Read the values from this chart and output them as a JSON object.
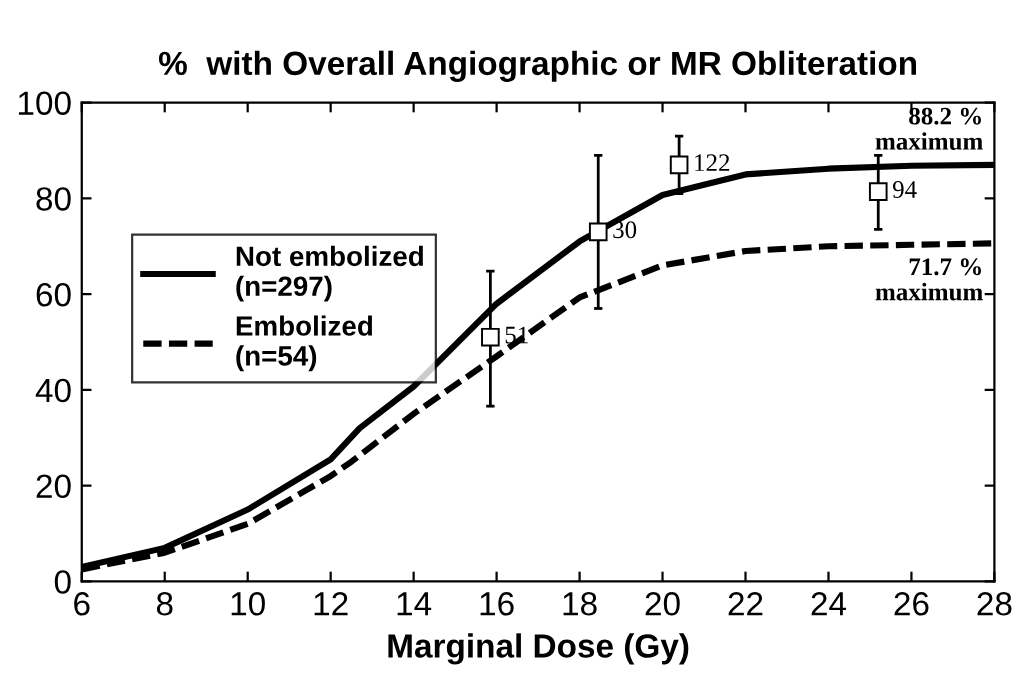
{
  "chart_data": {
    "type": "line",
    "title": "%  with Overall Angiographic or MR Obliteration",
    "xlabel": "Marginal Dose (Gy)",
    "xlim": [
      6,
      28
    ],
    "xticks": [
      6,
      8,
      10,
      12,
      14,
      16,
      18,
      20,
      22,
      24,
      26,
      28
    ],
    "ylim": [
      0,
      100
    ],
    "yticks": [
      0,
      20,
      40,
      60,
      80,
      100
    ],
    "grid": false,
    "legend": "left",
    "marker": "none",
    "series": [
      {
        "name": "Not embolized\n(n=297)",
        "color": "#000000",
        "line_style": "solid",
        "x": [
          6,
          8,
          10,
          12,
          12.7,
          14,
          16,
          18,
          20,
          22,
          24,
          26,
          28
        ],
        "values": [
          3,
          7,
          15,
          25.5,
          32,
          40.7,
          58,
          71,
          80.7,
          85,
          86.2,
          86.8,
          87
        ]
      },
      {
        "name": "Embolized\n(n=54)",
        "color": "#000000",
        "line_style": "dashed",
        "x": [
          6,
          8,
          10,
          12,
          12.5,
          14,
          16,
          18,
          20,
          22,
          24,
          26,
          28
        ],
        "values": [
          2.5,
          6,
          12,
          22,
          25,
          35,
          47,
          59.3,
          66,
          69,
          70,
          70.3,
          70.6
        ]
      },
      {
        "type": "scatter",
        "marker": "square",
        "color": "#000000",
        "x": [
          15.85,
          18.45,
          20.4,
          25.2
        ],
        "values": [
          51,
          73,
          87,
          81.4
        ],
        "errors": [
          [
            36.6,
            64.8
          ],
          [
            57,
            89
          ],
          [
            81,
            93
          ],
          [
            73.5,
            89
          ]
        ]
      }
    ],
    "annotations": [
      {
        "text": "88.2 %\nmaximum",
        "x": 28,
        "y": 88.2
      },
      {
        "text": "71.7 %\nmaximum",
        "x": 28,
        "y": 71.7
      },
      {
        "text": "51",
        "x": 15.85,
        "y": 51
      },
      {
        "text": "30",
        "x": 18.45,
        "y": 73
      },
      {
        "text": "122",
        "x": 20.4,
        "y": 87
      },
      {
        "text": "94",
        "x": 25.2,
        "y": 81.4
      }
    ]
  }
}
